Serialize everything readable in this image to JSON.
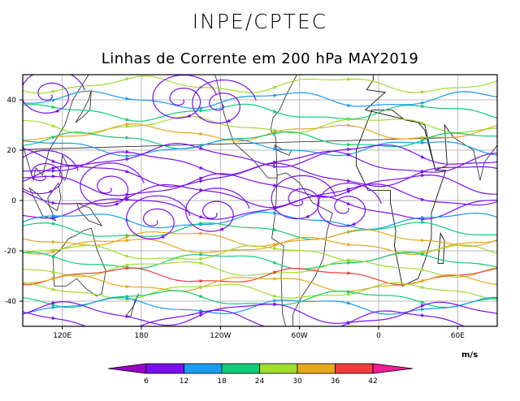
{
  "header": {
    "organization": "INPE/CPTEC",
    "title": "Linhas de Corrente em 200 hPa MAY2019"
  },
  "colorbar": {
    "units": "m/s",
    "tick_labels": [
      "6",
      "12",
      "18",
      "24",
      "30",
      "36",
      "42"
    ],
    "colors": [
      "#9a00c8",
      "#7a10f0",
      "#1a9cf0",
      "#10cc78",
      "#a0dc30",
      "#e6a81e",
      "#f03c3c",
      "#f01e96"
    ]
  },
  "chart_data": {
    "type": "streamline",
    "title": "Linhas de Corrente em 200 hPa MAY2019",
    "variable": "200 hPa streamlines colored by wind speed",
    "units": "m/s",
    "x_ticks": [
      "120E",
      "180",
      "120W",
      "60W",
      "0",
      "60E"
    ],
    "y_ticks": [
      "40",
      "20",
      "0",
      "-20",
      "-40"
    ],
    "xlim_deg": [
      90,
      450
    ],
    "ylim_deg": [
      -50,
      50
    ],
    "bands": [
      {
        "lat": 46,
        "speed": 24
      },
      {
        "lat": 40,
        "speed": 12
      },
      {
        "lat": 35,
        "speed": 18
      },
      {
        "lat": 30,
        "speed": 27
      },
      {
        "lat": 27,
        "speed": 32
      },
      {
        "lat": 24,
        "speed": 20
      },
      {
        "lat": 21,
        "speed": 14
      },
      {
        "lat": 18,
        "speed": 10
      },
      {
        "lat": 15,
        "speed": 8
      },
      {
        "lat": 10,
        "speed": 7
      },
      {
        "lat": 6,
        "speed": 9
      },
      {
        "lat": 2,
        "speed": 6
      },
      {
        "lat": -3,
        "speed": 7
      },
      {
        "lat": -8,
        "speed": 12
      },
      {
        "lat": -12,
        "speed": 22
      },
      {
        "lat": -15,
        "speed": 34
      },
      {
        "lat": -18,
        "speed": 30
      },
      {
        "lat": -21,
        "speed": 26
      },
      {
        "lat": -24,
        "speed": 22
      },
      {
        "lat": -27,
        "speed": 28
      },
      {
        "lat": -30,
        "speed": 36
      },
      {
        "lat": -33,
        "speed": 32
      },
      {
        "lat": -36,
        "speed": 26
      },
      {
        "lat": -39,
        "speed": 20
      },
      {
        "lat": -42,
        "speed": 14
      },
      {
        "lat": -45,
        "speed": 10
      },
      {
        "lat": -48,
        "speed": 7
      }
    ],
    "vortices": [
      {
        "lon": 105,
        "lat": 10,
        "speed": 8
      },
      {
        "lon": 155,
        "lat": 5,
        "speed": 7
      },
      {
        "lon": 190,
        "lat": -8,
        "speed": 6
      },
      {
        "lon": 235,
        "lat": -5,
        "speed": 7
      },
      {
        "lon": 300,
        "lat": 0,
        "speed": 6
      },
      {
        "lon": 335,
        "lat": -3,
        "speed": 7
      },
      {
        "lon": 210,
        "lat": 40,
        "speed": 9
      },
      {
        "lon": 240,
        "lat": 38,
        "speed": 10
      },
      {
        "lon": 110,
        "lat": 42,
        "speed": 8
      }
    ]
  }
}
